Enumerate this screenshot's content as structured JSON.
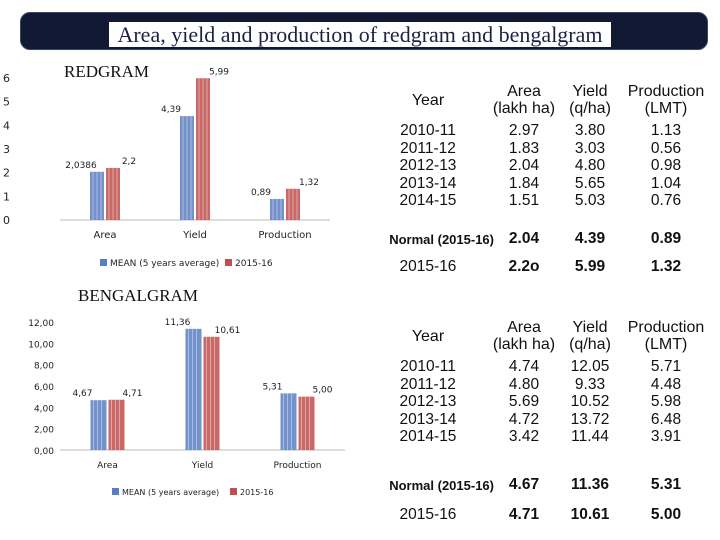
{
  "page_title": "Area, yield and production of redgram and bengalgram",
  "colors": {
    "mean": "#5b7ec1",
    "series2015": "#c0504d",
    "title_bg": "#121933"
  },
  "chart_data": [
    {
      "type": "bar",
      "title": "REDGRAM",
      "categories": [
        "Area",
        "Yield",
        "Production"
      ],
      "series": [
        {
          "name": "MEAN (5 years average)",
          "values": [
            2.0386,
            4.39,
            0.89
          ],
          "labels": [
            "2,0386",
            "4,39",
            "0,89"
          ]
        },
        {
          "name": "2015-16",
          "values": [
            2.2,
            5.99,
            1.32
          ],
          "labels": [
            "2,2",
            "5,99",
            "1,32"
          ]
        }
      ],
      "ylim": [
        0,
        6
      ],
      "yticks": [
        "0",
        "1",
        "2",
        "3",
        "4",
        "5",
        "6"
      ],
      "legend": "bottom"
    },
    {
      "type": "bar",
      "title": "BENGALGRAM",
      "categories": [
        "Area",
        "Yield",
        "Production"
      ],
      "series": [
        {
          "name": "MEAN (5 years average)",
          "values": [
            4.67,
            11.36,
            5.31
          ],
          "labels": [
            "4,67",
            "11,36",
            "5,31"
          ]
        },
        {
          "name": "2015-16",
          "values": [
            4.71,
            10.61,
            5.0
          ],
          "labels": [
            "4,71",
            "10,61",
            "5,00"
          ]
        }
      ],
      "ylim": [
        0,
        12
      ],
      "yticks": [
        "0,00",
        "2,00",
        "4,00",
        "6,00",
        "8,00",
        "10,00",
        "12,00"
      ],
      "legend": "bottom"
    }
  ],
  "tables": [
    {
      "headers": {
        "year": "Year",
        "area": "Area\n(lakh ha)",
        "yield": "Yield\n(q/ha)",
        "production": "Production\n(LMT)"
      },
      "years": "2010-11\n2011-12\n2012-13\n2013-14\n2014-15",
      "area": "2.97\n1.83\n2.04\n1.84\n1.51",
      "yield": "3.80\n3.03\n4.80\n5.65\n5.03",
      "production": "1.13\n0.56\n0.98\n1.04\n0.76",
      "normal": {
        "label": "Normal (2015-16)",
        "area": "2.04",
        "yield": "4.39",
        "production": "0.89"
      },
      "current": {
        "label": "2015-16",
        "area": "2.2o",
        "yield": "5.99",
        "production": "1.32"
      }
    },
    {
      "headers": {
        "year": "Year",
        "area": "Area\n(lakh ha)",
        "yield": "Yield\n(q/ha)",
        "production": "Production\n(LMT)"
      },
      "years": "2010-11\n2011-12\n2012-13\n2013-14\n2014-15",
      "area": "4.74\n4.80\n5.69\n4.72\n3.42",
      "yield": "12.05\n9.33\n10.52\n13.72\n11.44",
      "production": "5.71\n4.48\n5.98\n6.48\n3.91",
      "normal": {
        "label": "Normal (2015-16)",
        "area": "4.67",
        "yield": "11.36",
        "production": "5.31"
      },
      "current": {
        "label": "2015-16",
        "area": "4.71",
        "yield": "10.61",
        "production": "5.00"
      }
    }
  ]
}
